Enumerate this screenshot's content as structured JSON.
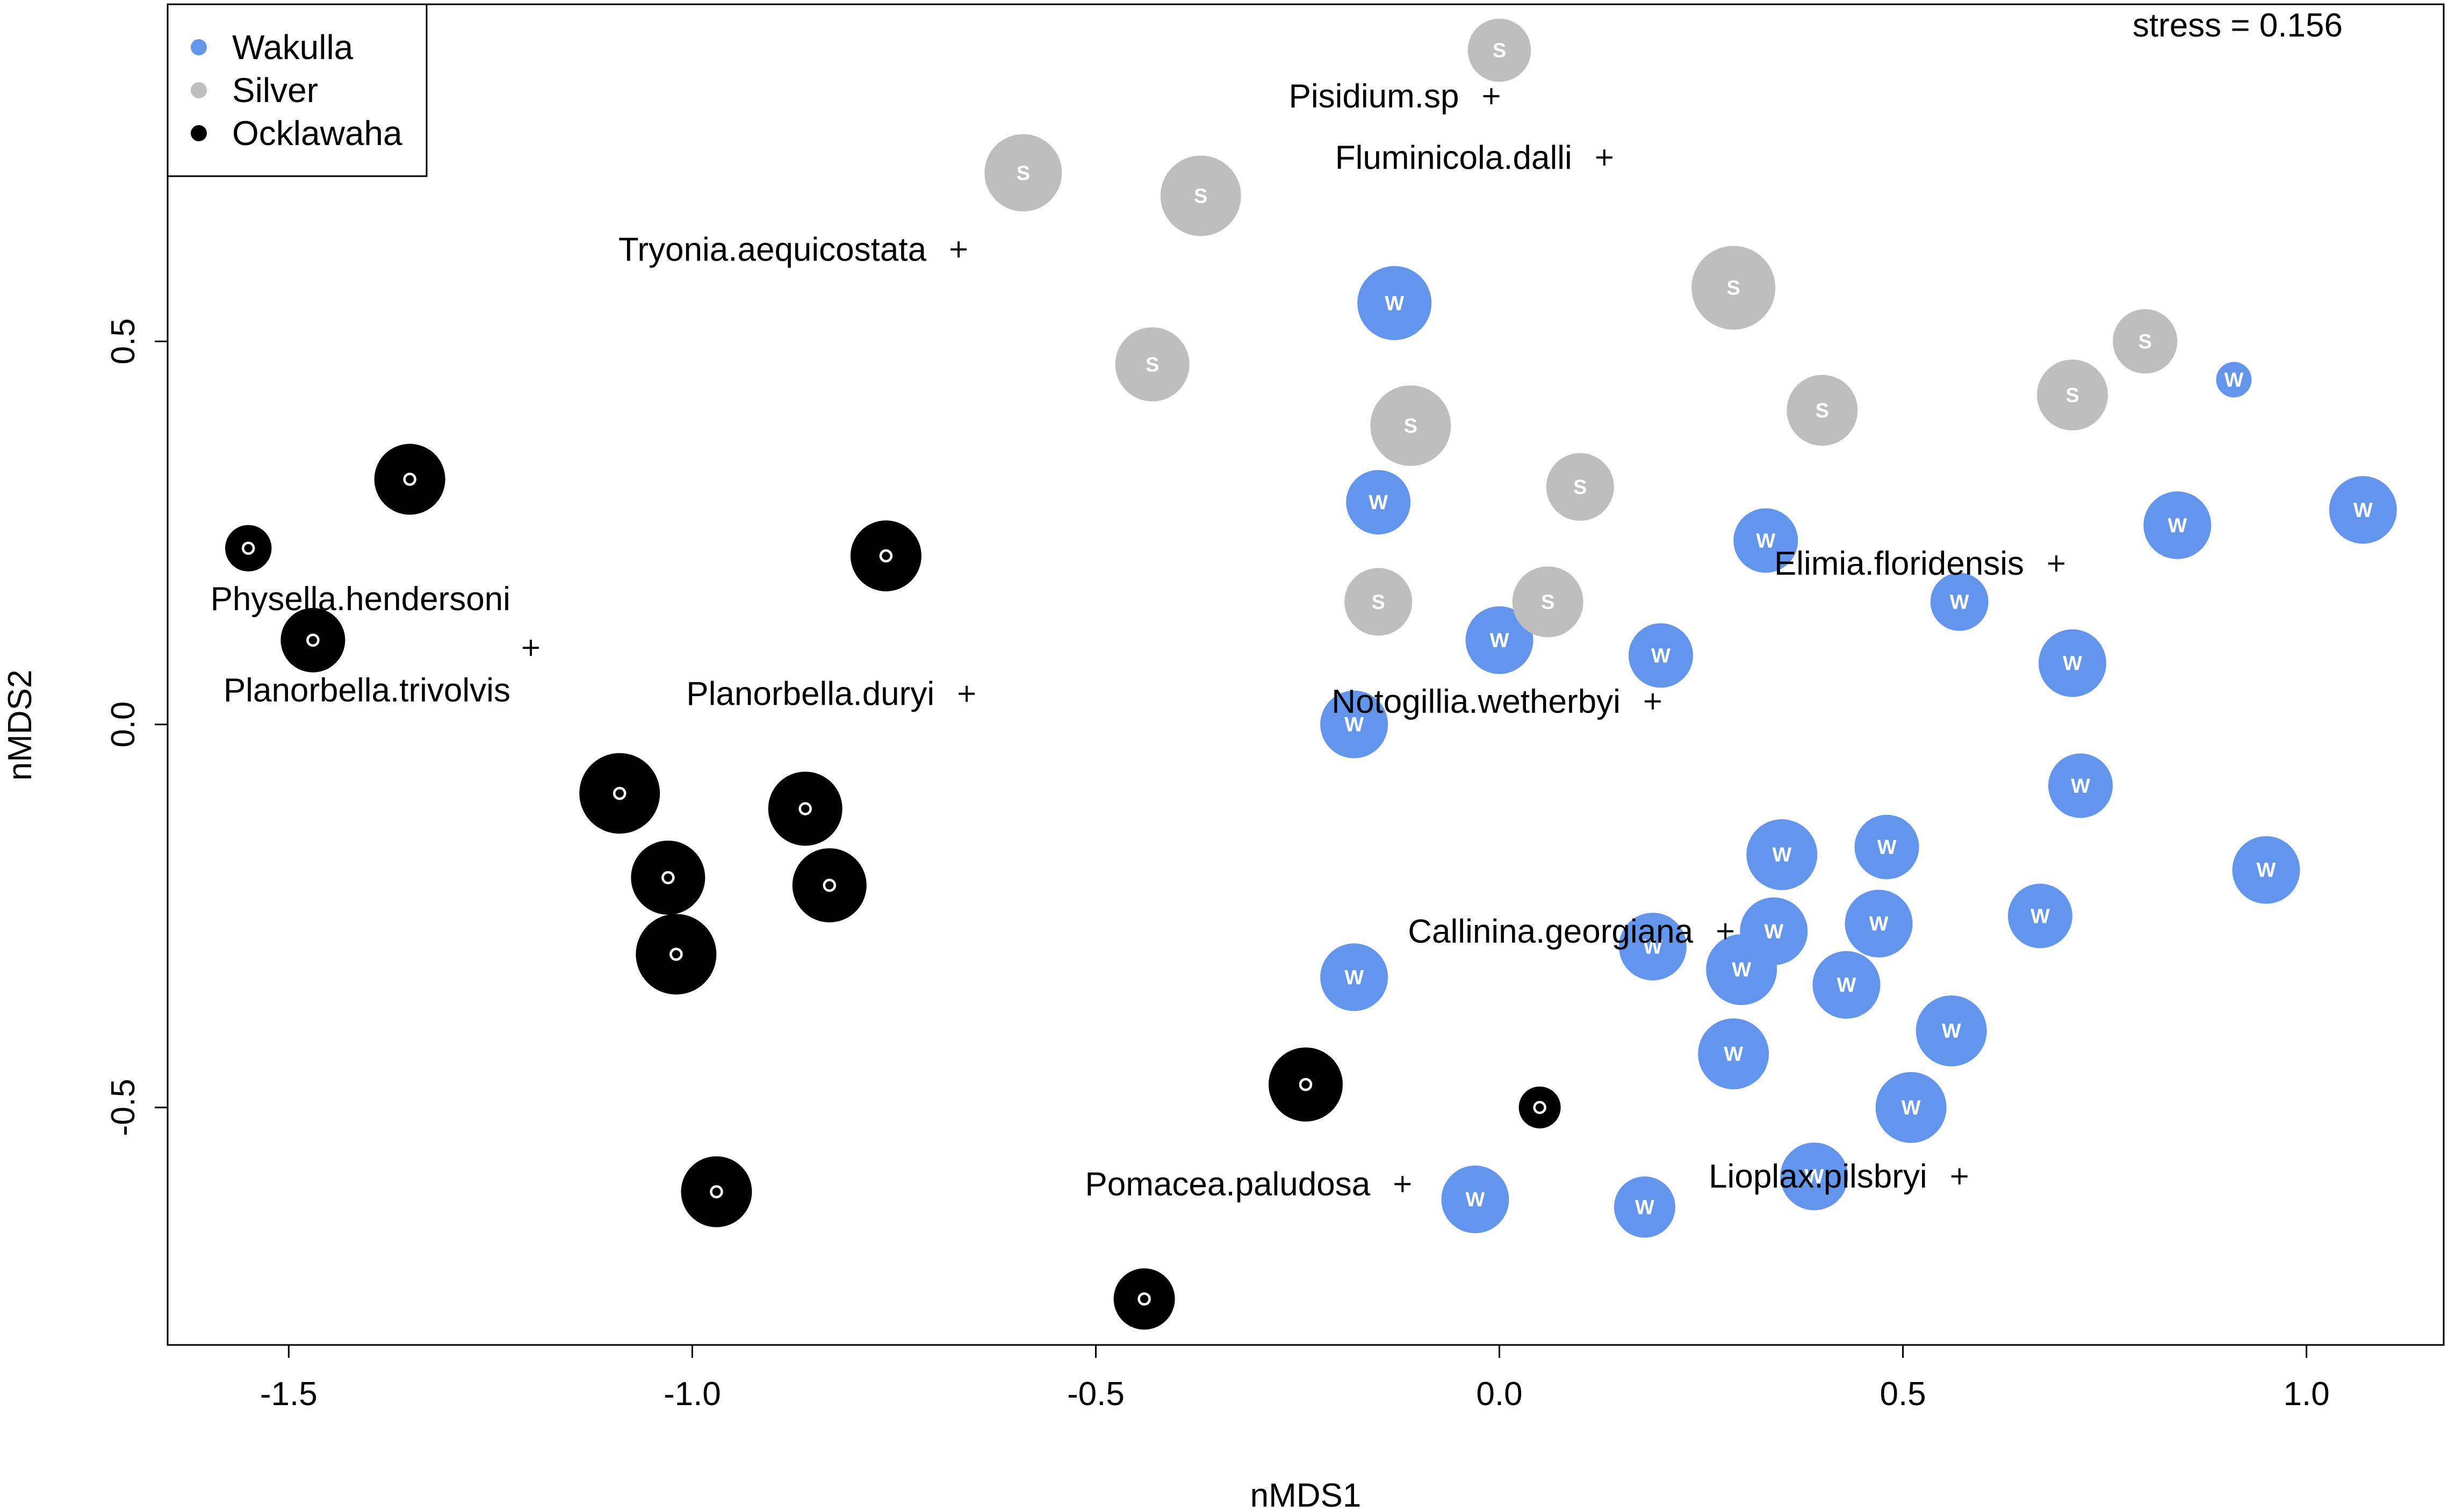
{
  "chart_data": {
    "type": "scatter",
    "title": "",
    "xlabel": "nMDS1",
    "ylabel": "nMDS2",
    "xlim": [
      -1.65,
      1.17
    ],
    "ylim": [
      -0.81,
      0.94
    ],
    "x_ticks": [
      -1.5,
      -1.0,
      -0.5,
      0.0,
      0.5,
      1.0
    ],
    "x_tick_labels": [
      "-1.5",
      "-1.0",
      "-0.5",
      "0.0",
      "0.5",
      "1.0"
    ],
    "y_ticks": [
      -0.5,
      0.0,
      0.5
    ],
    "y_tick_labels": [
      "-0.5",
      "0.0",
      "0.5"
    ],
    "stress_text": "stress = 0.156",
    "legend": {
      "position": "top-left",
      "entries": [
        {
          "label": "Wakulla",
          "color": "#6495ed"
        },
        {
          "label": "Silver",
          "color": "#bebebe"
        },
        {
          "label": "Ocklawaha",
          "color": "#000000"
        }
      ]
    },
    "series": [
      {
        "name": "Wakulla",
        "symbol": "W",
        "color": "#6495ed",
        "label_color": "#ffffff",
        "points": [
          {
            "x": -0.13,
            "y": 0.55,
            "size": 1.15
          },
          {
            "x": -0.15,
            "y": 0.29,
            "size": 1.0
          },
          {
            "x": 0.0,
            "y": 0.11,
            "size": 1.05
          },
          {
            "x": 0.2,
            "y": 0.09,
            "size": 1.0
          },
          {
            "x": -0.18,
            "y": 0.0,
            "size": 1.05
          },
          {
            "x": 0.33,
            "y": 0.24,
            "size": 1.0
          },
          {
            "x": 0.57,
            "y": 0.16,
            "size": 0.9
          },
          {
            "x": 0.71,
            "y": 0.08,
            "size": 1.05
          },
          {
            "x": 0.84,
            "y": 0.26,
            "size": 1.05
          },
          {
            "x": 1.07,
            "y": 0.28,
            "size": 1.05
          },
          {
            "x": 0.91,
            "y": 0.45,
            "size": 0.55
          },
          {
            "x": 0.72,
            "y": -0.08,
            "size": 1.0
          },
          {
            "x": 0.35,
            "y": -0.17,
            "size": 1.1
          },
          {
            "x": 0.48,
            "y": -0.16,
            "size": 1.0
          },
          {
            "x": 0.95,
            "y": -0.19,
            "size": 1.05
          },
          {
            "x": 0.67,
            "y": -0.25,
            "size": 1.0
          },
          {
            "x": 0.47,
            "y": -0.26,
            "size": 1.05
          },
          {
            "x": 0.34,
            "y": -0.27,
            "size": 1.05
          },
          {
            "x": 0.19,
            "y": -0.29,
            "size": 1.05
          },
          {
            "x": 0.3,
            "y": -0.32,
            "size": 1.1
          },
          {
            "x": 0.43,
            "y": -0.34,
            "size": 1.05
          },
          {
            "x": -0.18,
            "y": -0.33,
            "size": 1.05
          },
          {
            "x": 0.56,
            "y": -0.4,
            "size": 1.1
          },
          {
            "x": 0.29,
            "y": -0.43,
            "size": 1.1
          },
          {
            "x": 0.51,
            "y": -0.5,
            "size": 1.1
          },
          {
            "x": 0.39,
            "y": -0.59,
            "size": 1.05
          },
          {
            "x": 0.18,
            "y": -0.63,
            "size": 0.95
          },
          {
            "x": -0.03,
            "y": -0.62,
            "size": 1.05
          }
        ]
      },
      {
        "name": "Silver",
        "symbol": "S",
        "color": "#bebebe",
        "label_color": "#ffffff",
        "points": [
          {
            "x": 0.0,
            "y": 0.88,
            "size": 0.98
          },
          {
            "x": -0.59,
            "y": 0.72,
            "size": 1.2
          },
          {
            "x": -0.37,
            "y": 0.69,
            "size": 1.25
          },
          {
            "x": 0.29,
            "y": 0.57,
            "size": 1.3
          },
          {
            "x": -0.43,
            "y": 0.47,
            "size": 1.15
          },
          {
            "x": -0.11,
            "y": 0.39,
            "size": 1.25
          },
          {
            "x": 0.4,
            "y": 0.41,
            "size": 1.1
          },
          {
            "x": 0.71,
            "y": 0.43,
            "size": 1.1
          },
          {
            "x": 0.8,
            "y": 0.5,
            "size": 1.0
          },
          {
            "x": 0.1,
            "y": 0.31,
            "size": 1.05
          },
          {
            "x": -0.15,
            "y": 0.16,
            "size": 1.05
          },
          {
            "x": 0.06,
            "y": 0.16,
            "size": 1.1
          }
        ]
      },
      {
        "name": "Ocklawaha",
        "symbol": "O",
        "color": "#000000",
        "label_color": "#ffffff",
        "points": [
          {
            "x": -1.35,
            "y": 0.32,
            "size": 1.1
          },
          {
            "x": -1.55,
            "y": 0.23,
            "size": 0.72
          },
          {
            "x": -1.47,
            "y": 0.11,
            "size": 1.0
          },
          {
            "x": -0.76,
            "y": 0.22,
            "size": 1.1
          },
          {
            "x": -1.09,
            "y": -0.09,
            "size": 1.25
          },
          {
            "x": -0.86,
            "y": -0.11,
            "size": 1.15
          },
          {
            "x": -1.03,
            "y": -0.2,
            "size": 1.15
          },
          {
            "x": -0.83,
            "y": -0.21,
            "size": 1.15
          },
          {
            "x": -1.02,
            "y": -0.3,
            "size": 1.25
          },
          {
            "x": -0.24,
            "y": -0.47,
            "size": 1.15
          },
          {
            "x": 0.05,
            "y": -0.5,
            "size": 0.65
          },
          {
            "x": -0.97,
            "y": -0.61,
            "size": 1.1
          },
          {
            "x": -0.44,
            "y": -0.75,
            "size": 0.95
          }
        ]
      }
    ],
    "species": [
      {
        "name": "Pisidium.sp",
        "x": -0.01,
        "y": 0.82
      },
      {
        "name": "Fluminicola.dalli",
        "x": 0.13,
        "y": 0.74
      },
      {
        "name": "Tryonia.aequicostata",
        "x": -0.67,
        "y": 0.62
      },
      {
        "name": "Elimia.floridensis",
        "x": 0.69,
        "y": 0.21
      },
      {
        "name": "Physella.hendersoni",
        "x": -1.2,
        "y": 0.1
      },
      {
        "name": "Planorbella.trivolvis",
        "x": -1.2,
        "y": 0.1
      },
      {
        "name": "Planorbella.duryi",
        "x": -0.66,
        "y": 0.04
      },
      {
        "name": "Notogillia.wetherbyi",
        "x": 0.19,
        "y": 0.03
      },
      {
        "name": "Callinina.georgiana",
        "x": 0.28,
        "y": -0.27
      },
      {
        "name": "Pomacea.paludosa",
        "x": -0.12,
        "y": -0.6
      },
      {
        "name": "Lioplax.pilsbryi",
        "x": 0.57,
        "y": -0.59
      }
    ]
  }
}
